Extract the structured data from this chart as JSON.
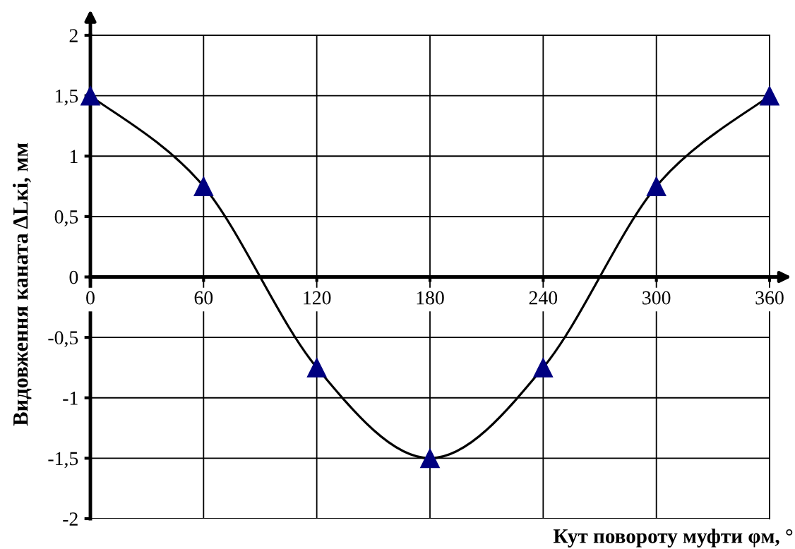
{
  "chart_data": {
    "type": "line",
    "xlabel": "Кут повороту муфти φм, °",
    "ylabel": "Видовження каната ΔLкі, мм",
    "x": [
      0,
      60,
      120,
      180,
      240,
      300,
      360
    ],
    "series": [
      {
        "color": "#000080",
        "values": [
          1.5,
          0.75,
          -0.75,
          -1.5,
          -0.75,
          0.75,
          1.5
        ]
      }
    ],
    "xlim": [
      0,
      360
    ],
    "ylim": [
      -2,
      2
    ],
    "xticks": [
      0,
      60,
      120,
      180,
      240,
      300,
      360
    ],
    "yticks": [
      -2,
      {
        "value": -1.5,
        "label": "-1,5"
      },
      -1,
      {
        "value": -0.5,
        "label": "-0,5"
      },
      0,
      {
        "value": 0.5,
        "label": "0,5"
      },
      1,
      {
        "value": 1.5,
        "label": "1,5"
      },
      2
    ],
    "grid": true,
    "marker": "triangle",
    "line_style": "solid"
  }
}
